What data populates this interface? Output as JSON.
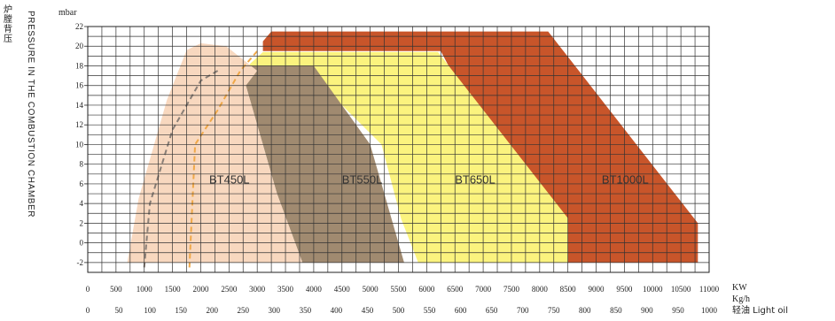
{
  "chart_data": {
    "type": "area",
    "ylabel_en": "PRESSURE IN THE COMBUSTION CHAMBER",
    "ylabel_cn": "炉膛背压",
    "y_unit": "mbar",
    "ylim": [
      -3,
      22
    ],
    "y_ticks": [
      22,
      20,
      18,
      16,
      14,
      12,
      10,
      8,
      6,
      4,
      2,
      0,
      -2
    ],
    "x_kw_unit": "KW",
    "x_kw_range": [
      0,
      11000
    ],
    "x_kw_ticks": [
      0,
      500,
      1000,
      1500,
      2000,
      2500,
      3000,
      3500,
      4000,
      4500,
      5000,
      5500,
      6000,
      6500,
      7000,
      7500,
      8000,
      8500,
      9000,
      9500,
      10000,
      10500,
      11000
    ],
    "x_kw_tick_labels": [
      "0",
      "500",
      "1000",
      "1500",
      "2000",
      "2500",
      "3000",
      "3500",
      "4000",
      "4500",
      "5000",
      "5500",
      "6000",
      "6500",
      "7000",
      "7500",
      "8000",
      "8500",
      "9000",
      "9500",
      "10000",
      "10500",
      "11000"
    ],
    "x_kgh_unit": "Kg/h",
    "x_kgh_fuel": "轻油 Light oil",
    "x_kgh_ticks": [
      0,
      50,
      100,
      150,
      200,
      250,
      300,
      350,
      400,
      450,
      500,
      550,
      600,
      650,
      700,
      750,
      800,
      850,
      900,
      950,
      1000
    ],
    "grid": true,
    "series": [
      {
        "name": "BT1000L",
        "color": "#c8552a",
        "label_at": [
          9100,
          6.5
        ],
        "points": [
          [
            3100,
            20.5
          ],
          [
            3250,
            21.5
          ],
          [
            8150,
            21.5
          ],
          [
            10800,
            2.0
          ],
          [
            10800,
            -2
          ],
          [
            8400,
            -2
          ],
          [
            8400,
            3
          ],
          [
            6950,
            11.8
          ],
          [
            6250,
            19.5
          ],
          [
            3100,
            19.5
          ]
        ]
      },
      {
        "name": "BT650L",
        "color": "#fbf37e",
        "label_at": [
          6500,
          6.5
        ],
        "points": [
          [
            2700,
            17.3
          ],
          [
            3100,
            19.4
          ],
          [
            6200,
            19.4
          ],
          [
            8500,
            2.5
          ],
          [
            8500,
            -2
          ],
          [
            5850,
            -2
          ],
          [
            5550,
            2.4
          ],
          [
            5200,
            10.0
          ],
          [
            4150,
            16.0
          ],
          [
            3950,
            17.5
          ],
          [
            3100,
            17.5
          ]
        ]
      },
      {
        "name": "BT550L",
        "color": "#a08a70",
        "label_at": [
          4500,
          6.5
        ],
        "points": [
          [
            2450,
            18.0
          ],
          [
            4000,
            18.0
          ],
          [
            5000,
            10.0
          ],
          [
            5600,
            -2
          ],
          [
            3800,
            -2
          ],
          [
            3350,
            5.0
          ],
          [
            2800,
            16.0
          ]
        ]
      },
      {
        "name": "BT450L",
        "color": "#f8d8bf",
        "label_at": [
          2150,
          6.5
        ],
        "points": [
          [
            700,
            -2
          ],
          [
            900,
            4.5
          ],
          [
            1400,
            14.5
          ],
          [
            1750,
            19.6
          ],
          [
            2000,
            20.3
          ],
          [
            2450,
            20.0
          ],
          [
            3000,
            17.5
          ],
          [
            2800,
            16.0
          ],
          [
            3350,
            5.0
          ],
          [
            3800,
            -2
          ]
        ]
      }
    ],
    "dashed_lines": [
      {
        "color": "#8a7f77",
        "points": [
          [
            1000,
            -2.5
          ],
          [
            1100,
            4.0
          ],
          [
            1500,
            11.5
          ],
          [
            2000,
            16.5
          ],
          [
            2300,
            17.5
          ]
        ]
      },
      {
        "color": "#f0a848",
        "points": [
          [
            1800,
            -2.5
          ],
          [
            1900,
            10.0
          ],
          [
            2300,
            13.5
          ],
          [
            2700,
            17.5
          ],
          [
            3000,
            19.5
          ]
        ]
      }
    ]
  }
}
